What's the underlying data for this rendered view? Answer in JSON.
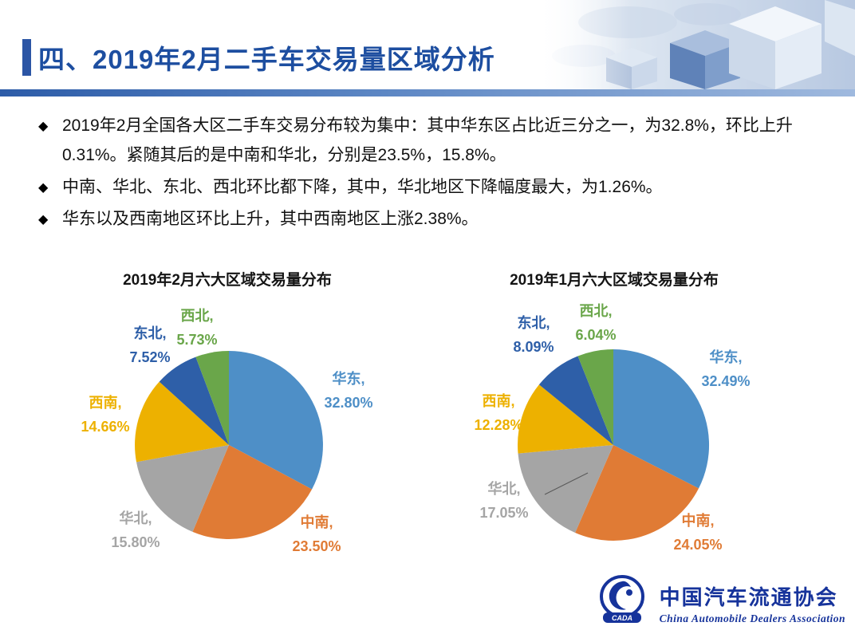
{
  "header": {
    "title": "四、2019年2月二手车交易量区域分析"
  },
  "bullets": [
    "2019年2月全国各大区二手车交易分布较为集中：其中华东区占比近三分之一，为32.8%，环比上升0.31%。紧随其后的是中南和华北，分别是23.5%，15.8%。",
    "中南、华北、东北、西北环比都下降，其中，华北地区下降幅度最大，为1.26%。",
    "华东以及西南地区环比上升，其中西南地区上涨2.38%。"
  ],
  "chart_data": [
    {
      "type": "pie",
      "title": "2019年2月六大区域交易量分布",
      "categories": [
        "华东",
        "中南",
        "华北",
        "西南",
        "东北",
        "西北"
      ],
      "values": [
        32.8,
        23.5,
        15.8,
        14.66,
        7.52,
        5.73
      ],
      "colors": [
        "#4E8FC7",
        "#E07B35",
        "#A5A5A5",
        "#EDB100",
        "#2E5FA8",
        "#6AA64A"
      ],
      "unit": "%",
      "legend": "none",
      "label_style": "outside, category + percent"
    },
    {
      "type": "pie",
      "title": "2019年1月六大区域交易量分布",
      "categories": [
        "华东",
        "中南",
        "华北",
        "西南",
        "东北",
        "西北"
      ],
      "values": [
        32.49,
        24.05,
        17.05,
        12.28,
        8.09,
        6.04
      ],
      "colors": [
        "#4E8FC7",
        "#E07B35",
        "#A5A5A5",
        "#EDB100",
        "#2E5FA8",
        "#6AA64A"
      ],
      "unit": "%",
      "legend": "none",
      "label_style": "outside, category + percent"
    }
  ],
  "footer": {
    "org_cn": "中国汽车流通协会",
    "org_en": "China Automobile Dealers Association",
    "logo_text": "CADA"
  },
  "colors": {
    "title_blue": "#1d4ea0",
    "divider_blue": "#2d5ca8",
    "logo_blue": "#16339b"
  }
}
